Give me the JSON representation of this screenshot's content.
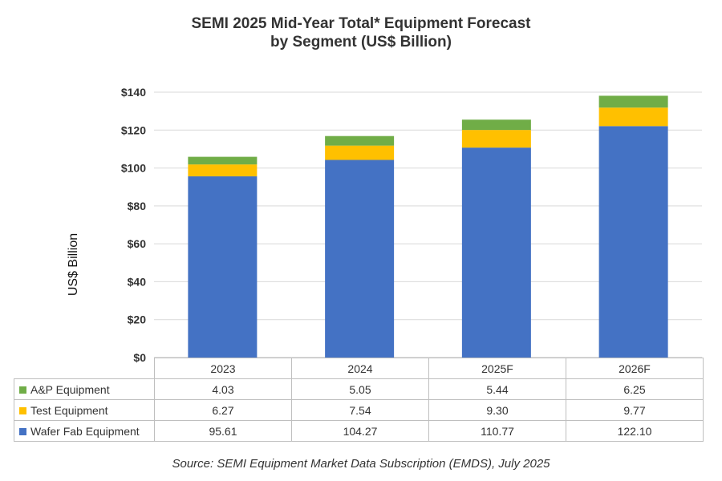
{
  "chart_data": {
    "type": "bar",
    "stacked": true,
    "title_line1": "SEMI 2025 Mid-Year Total* Equipment Forecast",
    "title_line2": "by Segment (US$ Billion)",
    "ylabel": "US$ Billion",
    "xlabel": "",
    "ylim": [
      0,
      140
    ],
    "y_ticks": [
      0,
      20,
      40,
      60,
      80,
      100,
      120,
      140
    ],
    "y_tick_labels": [
      "$0",
      "$20",
      "$40",
      "$60",
      "$80",
      "$100",
      "$120",
      "$140"
    ],
    "grid": true,
    "categories": [
      "2023",
      "2024",
      "2025F",
      "2026F"
    ],
    "series": [
      {
        "name": "Wafer Fab Equipment",
        "color": "#4472C4",
        "values": [
          95.61,
          104.27,
          110.77,
          122.1
        ],
        "labels": [
          "95.61",
          "104.27",
          "110.77",
          "122.10"
        ]
      },
      {
        "name": "Test Equipment",
        "color": "#FFC000",
        "values": [
          6.27,
          7.54,
          9.3,
          9.77
        ],
        "labels": [
          "6.27",
          "7.54",
          "9.30",
          "9.77"
        ]
      },
      {
        "name": "A&P Equipment",
        "color": "#70AD47",
        "values": [
          4.03,
          5.05,
          5.44,
          6.25
        ],
        "labels": [
          "4.03",
          "5.05",
          "5.44",
          "6.25"
        ]
      }
    ],
    "table_row_order": [
      "A&P Equipment",
      "Test Equipment",
      "Wafer Fab Equipment"
    ],
    "source": "Source: SEMI Equipment Market Data Subscription (EMDS), July 2025"
  }
}
